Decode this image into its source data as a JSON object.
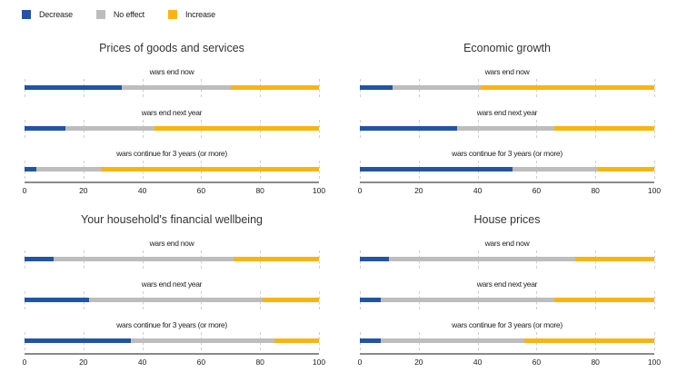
{
  "legend": {
    "items": [
      {
        "label": "Decrease",
        "color": "#2155A4"
      },
      {
        "label": "No effect",
        "color": "#BDBDBD"
      },
      {
        "label": "Increase",
        "color": "#F8B511"
      }
    ]
  },
  "chart_data": [
    {
      "type": "bar",
      "orientation": "horizontal",
      "stacked": true,
      "title": "Prices of goods and services",
      "categories": [
        "wars end now",
        "wars end next year",
        "wars continue for 3 years (or more)"
      ],
      "series": [
        {
          "name": "Decrease",
          "values": [
            33,
            14,
            4
          ]
        },
        {
          "name": "No effect",
          "values": [
            37,
            30,
            22
          ]
        },
        {
          "name": "Increase",
          "values": [
            30,
            56,
            74
          ]
        }
      ],
      "xlim": [
        0,
        100
      ],
      "x_ticks": [
        0,
        20,
        40,
        60,
        80,
        100
      ],
      "grid": "dashed-vertical",
      "legend_position": "top-left"
    },
    {
      "type": "bar",
      "orientation": "horizontal",
      "stacked": true,
      "title": "Economic growth",
      "categories": [
        "wars end now",
        "wars end next year",
        "wars continue for 3 years (or more)"
      ],
      "series": [
        {
          "name": "Decrease",
          "values": [
            11,
            33,
            52
          ]
        },
        {
          "name": "No effect",
          "values": [
            30,
            33,
            29
          ]
        },
        {
          "name": "Increase",
          "values": [
            59,
            34,
            19
          ]
        }
      ],
      "xlim": [
        0,
        100
      ],
      "x_ticks": [
        0,
        20,
        40,
        60,
        80,
        100
      ],
      "grid": "dashed-vertical",
      "legend_position": "top-left"
    },
    {
      "type": "bar",
      "orientation": "horizontal",
      "stacked": true,
      "title": "Your household's financial wellbeing",
      "categories": [
        "wars end now",
        "wars end next year",
        "wars continue for 3 years (or more)"
      ],
      "series": [
        {
          "name": "Decrease",
          "values": [
            10,
            22,
            36
          ]
        },
        {
          "name": "No effect",
          "values": [
            61,
            59,
            49
          ]
        },
        {
          "name": "Increase",
          "values": [
            29,
            19,
            15
          ]
        }
      ],
      "xlim": [
        0,
        100
      ],
      "x_ticks": [
        0,
        20,
        40,
        60,
        80,
        100
      ],
      "grid": "dashed-vertical",
      "legend_position": "top-left"
    },
    {
      "type": "bar",
      "orientation": "horizontal",
      "stacked": true,
      "title": "House prices",
      "categories": [
        "wars end now",
        "wars end next year",
        "wars continue for 3 years (or more)"
      ],
      "series": [
        {
          "name": "Decrease",
          "values": [
            10,
            7,
            7
          ]
        },
        {
          "name": "No effect",
          "values": [
            63,
            59,
            49
          ]
        },
        {
          "name": "Increase",
          "values": [
            27,
            34,
            44
          ]
        }
      ],
      "xlim": [
        0,
        100
      ],
      "x_ticks": [
        0,
        20,
        40,
        60,
        80,
        100
      ],
      "grid": "dashed-vertical",
      "legend_position": "top-left"
    }
  ]
}
